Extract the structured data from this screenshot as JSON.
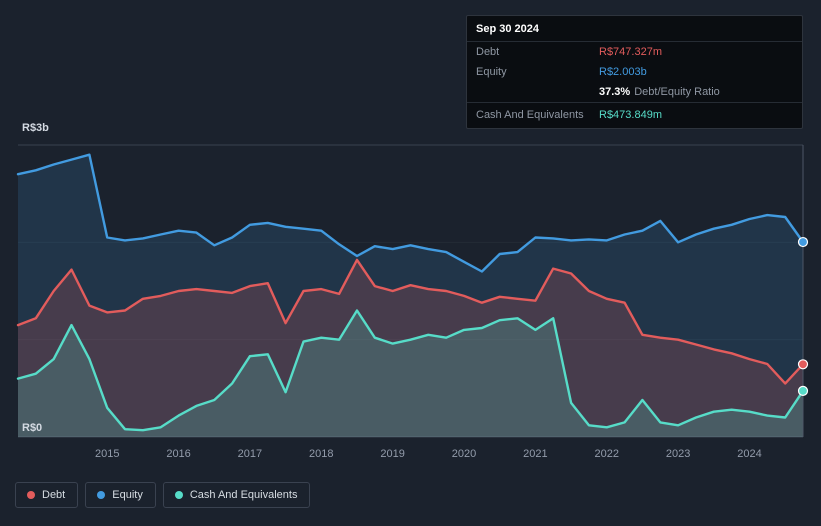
{
  "colors": {
    "background": "#1b222d",
    "debt": "#e25c5c",
    "equity": "#429be0",
    "cash": "#57dcc8",
    "grid_strong": "#39424f",
    "grid_faint": "#232b36",
    "crosshair": "#4d5766",
    "tooltip_bg": "#0a0d11"
  },
  "tooltip": {
    "date": "Sep 30 2024",
    "debt_label": "Debt",
    "debt_value": "R$747.327m",
    "equity_label": "Equity",
    "equity_value": "R$2.003b",
    "ratio_value": "37.3%",
    "ratio_label": "Debt/Equity Ratio",
    "cash_label": "Cash And Equivalents",
    "cash_value": "R$473.849m"
  },
  "legend": {
    "items": [
      {
        "label": "Debt"
      },
      {
        "label": "Equity"
      },
      {
        "label": "Cash And Equivalents"
      }
    ]
  },
  "chart_data": {
    "type": "area",
    "title": "",
    "y_axis": {
      "top_label": "R$3b",
      "bottom_label": "R$0",
      "max": 3,
      "min": 0,
      "unit": "R$ billions"
    },
    "x_ticks": [
      "2015",
      "2016",
      "2017",
      "2018",
      "2019",
      "2020",
      "2021",
      "2022",
      "2023",
      "2024"
    ],
    "x": [
      2013.75,
      2014.0,
      2014.25,
      2014.5,
      2014.75,
      2015.0,
      2015.25,
      2015.5,
      2015.75,
      2016.0,
      2016.25,
      2016.5,
      2016.75,
      2017.0,
      2017.25,
      2017.5,
      2017.75,
      2018.0,
      2018.25,
      2018.5,
      2018.75,
      2019.0,
      2019.25,
      2019.5,
      2019.75,
      2020.0,
      2020.25,
      2020.5,
      2020.75,
      2021.0,
      2021.25,
      2021.5,
      2021.75,
      2022.0,
      2022.25,
      2022.5,
      2022.75,
      2023.0,
      2023.25,
      2023.5,
      2023.75,
      2024.0,
      2024.25,
      2024.5,
      2024.75
    ],
    "series": [
      {
        "name": "Debt",
        "color": "#e25c5c",
        "fill": "rgba(226,92,92,0.20)",
        "final_label": "R$747.327m",
        "values": [
          1.15,
          1.22,
          1.5,
          1.72,
          1.35,
          1.28,
          1.3,
          1.42,
          1.45,
          1.5,
          1.52,
          1.5,
          1.48,
          1.55,
          1.58,
          1.17,
          1.5,
          1.52,
          1.47,
          1.82,
          1.55,
          1.5,
          1.56,
          1.52,
          1.5,
          1.45,
          1.38,
          1.44,
          1.42,
          1.4,
          1.73,
          1.68,
          1.5,
          1.42,
          1.38,
          1.05,
          1.02,
          1.0,
          0.95,
          0.9,
          0.86,
          0.8,
          0.75,
          0.55,
          0.747
        ]
      },
      {
        "name": "Equity",
        "color": "#429be0",
        "fill": "rgba(66,155,224,0.16)",
        "final_label": "R$2.003b",
        "values": [
          2.7,
          2.74,
          2.8,
          2.85,
          2.9,
          2.05,
          2.02,
          2.04,
          2.08,
          2.12,
          2.1,
          1.97,
          2.05,
          2.18,
          2.2,
          2.16,
          2.14,
          2.12,
          1.98,
          1.86,
          1.96,
          1.93,
          1.97,
          1.93,
          1.9,
          1.8,
          1.7,
          1.88,
          1.9,
          2.05,
          2.04,
          2.02,
          2.03,
          2.02,
          2.08,
          2.12,
          2.22,
          2.0,
          2.08,
          2.14,
          2.18,
          2.24,
          2.28,
          2.26,
          2.003
        ]
      },
      {
        "name": "Cash And Equivalents",
        "color": "#57dcc8",
        "fill": "rgba(87,220,200,0.20)",
        "final_label": "R$473.849m",
        "values": [
          0.6,
          0.65,
          0.8,
          1.15,
          0.8,
          0.3,
          0.08,
          0.07,
          0.1,
          0.22,
          0.32,
          0.38,
          0.55,
          0.83,
          0.85,
          0.46,
          0.98,
          1.02,
          1.0,
          1.3,
          1.02,
          0.96,
          1.0,
          1.05,
          1.02,
          1.1,
          1.12,
          1.2,
          1.22,
          1.1,
          1.22,
          0.35,
          0.12,
          0.1,
          0.15,
          0.38,
          0.15,
          0.12,
          0.2,
          0.26,
          0.28,
          0.26,
          0.22,
          0.2,
          0.474
        ]
      }
    ]
  }
}
